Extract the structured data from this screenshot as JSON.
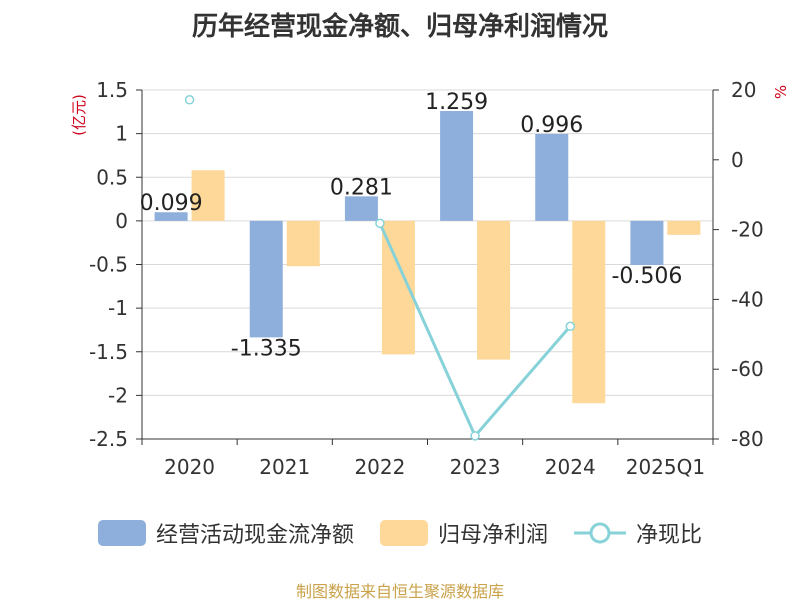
{
  "title": "历年经营现金净额、归母净利润情况",
  "source": "制图数据来自恒生聚源数据库",
  "chart_data": {
    "type": "bar",
    "categories": [
      "2020",
      "2021",
      "2022",
      "2023",
      "2024",
      "2025Q1"
    ],
    "y_left": {
      "label": "(亿元)",
      "ticks": [
        "1.5",
        "1",
        "0.5",
        "0",
        "-0.5",
        "-1",
        "-1.5",
        "-2",
        "-2.5"
      ],
      "min": -2.5,
      "max": 1.5
    },
    "y_right": {
      "label": "%",
      "ticks": [
        "20",
        "0",
        "-20",
        "-40",
        "-60",
        "-80"
      ],
      "min": -80,
      "max": 20
    },
    "series": [
      {
        "name": "经营活动现金流净额",
        "type": "bar",
        "axis": "left",
        "color": "#8eaedb",
        "values": [
          0.099,
          -1.335,
          0.281,
          1.259,
          0.996,
          -0.506
        ],
        "labels": [
          "0.099",
          "-1.335",
          "0.281",
          "1.259",
          "0.996",
          "-0.506"
        ]
      },
      {
        "name": "归母净利润",
        "type": "bar",
        "axis": "left",
        "color": "#fed898",
        "values": [
          0.58,
          -0.52,
          -1.53,
          -1.59,
          -2.09,
          -0.16
        ]
      },
      {
        "name": "净现比",
        "type": "line",
        "axis": "right",
        "color": "#86d2d8",
        "values": [
          17.2,
          null,
          -18.2,
          -79.1,
          -47.7,
          null
        ]
      }
    ],
    "grid": true
  }
}
